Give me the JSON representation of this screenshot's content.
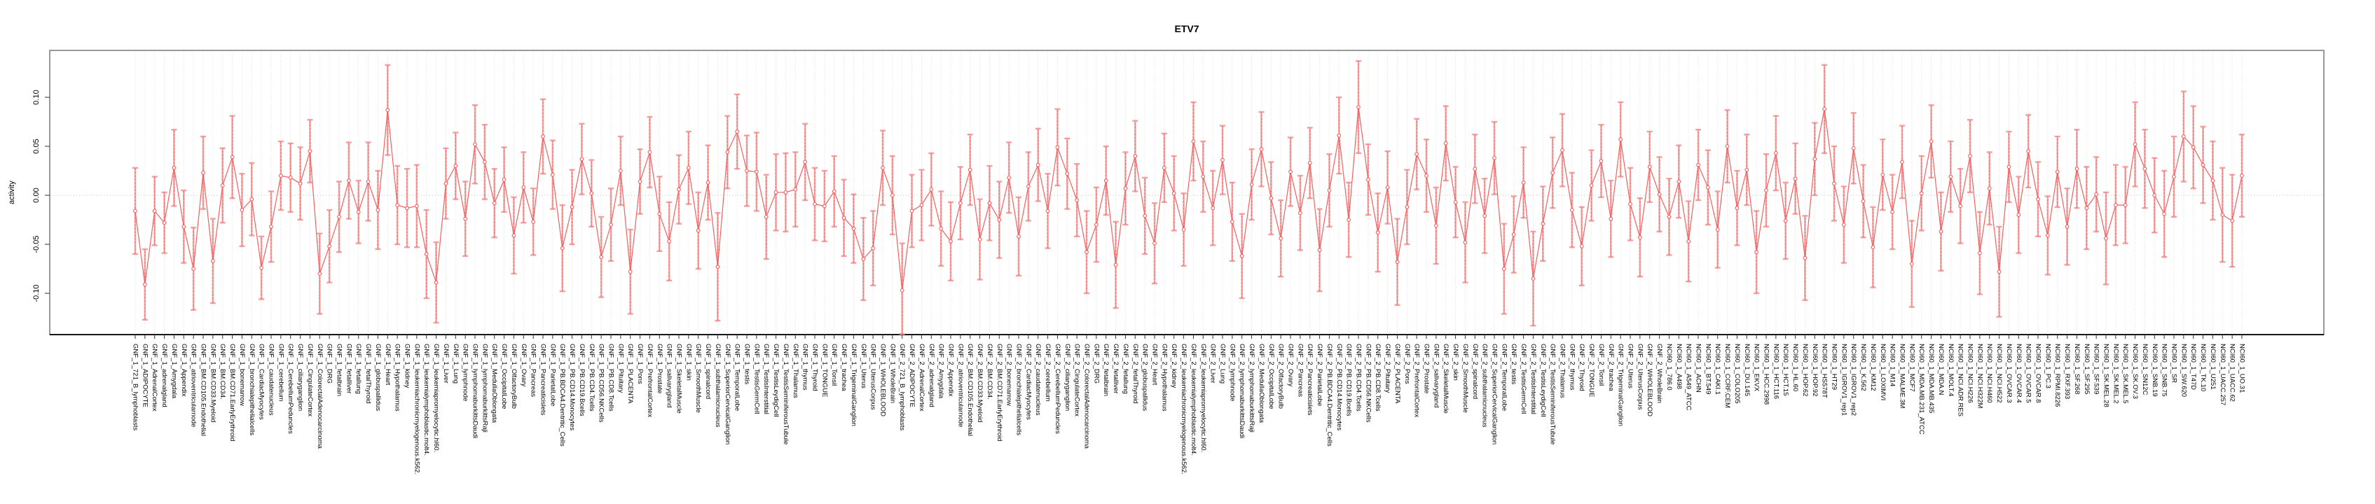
{
  "title": "ETV7",
  "chart_data": {
    "type": "line",
    "subtype": "points-with-error-bars",
    "title": "ETV7",
    "xlabel": "",
    "ylabel": "activity",
    "ylim": [
      -0.145,
      0.148
    ],
    "yticks": [
      0.1,
      0.05,
      0.0,
      -0.05,
      -0.1
    ],
    "ytick_labels": [
      "0.10",
      "0.05",
      "0.00",
      "-0.05",
      "-0.10"
    ],
    "grid": "vertical dotted gridline per category; dotted horizontal line at y=0",
    "legend_position": "none",
    "colors": {
      "point_and_line": "#f25f5f",
      "error_bar": "#f59b9b",
      "gridline": "#dedede",
      "zero_line": "#c4c4c4",
      "box": "#808080",
      "axis": "#000000"
    },
    "categories": [
      "GNF_1_721_B_lymphoblasts",
      "GNF_1_ADIPOCYTE",
      "GNF_1_AdrenalCortex",
      "GNF_1_adrenalgland",
      "GNF_1_Amygdala",
      "GNF_1_Appendix",
      "GNF_1_atrioventricularnode",
      "GNF_1_BM.CD105.Endothelial",
      "GNF_1_BM.CD33.Myeloid",
      "GNF_1_BM.CD34.",
      "GNF_1_BM.CD71.EarlyErythroid",
      "GNF_1_bonemarrow",
      "GNF_1_bronchialepithelialcells",
      "GNF_1_CardiacMyocytes",
      "GNF_1_caudatenucleus",
      "GNF_1_cerebellum",
      "GNF_1_CerebellumPeduncles",
      "GNF_1_ciliaryganglion",
      "GNF_1_CingulateCortex",
      "GNF_1_ColorectalAdenocarcinoma",
      "GNF_1_DRG",
      "GNF_1_fetalbrain",
      "GNF_1_fetalliver",
      "GNF_1_fetallung",
      "GNF_1_fetalThyroid",
      "GNF_1_globuspallidus",
      "GNF_1_Heart",
      "GNF_1_Hypothalamus",
      "GNF_1_kidney",
      "GNF_1_leukemiachronicmyelogenous.k562.",
      "GNF_1_leukemialymphoblastic.molt4.",
      "GNF_1_leukemiapromyelocytic.hl60.",
      "GNF_1_Liver",
      "GNF_1_Lung",
      "GNF_1_lymphnode",
      "GNF_1_lymphomaburkittsDaudi",
      "GNF_1_lymphomaburkittsRaji",
      "GNF_1_MedullaOblongata",
      "GNF_1_OccipitalLobe",
      "GNF_1_OlfactoryBulb",
      "GNF_1_Ovary",
      "GNF_1_Pancreas",
      "GNF_1_Pancreaticislets",
      "GNF_1_ParietalLobe",
      "GNF_1_PB.BDCA4.Dentritic_Cells",
      "GNF_1_PB.CD14.Monocytes",
      "GNF_1_PB.CD19.Bcells",
      "GNF_1_PB.CD4.Tcells",
      "GNF_1_PB.CD56.NKCells",
      "GNF_1_PB.CD8.Tcells",
      "GNF_1_Pituitary",
      "GNF_1_PLACENTA",
      "GNF_1_Pons",
      "GNF_1_PrefrontalCortex",
      "GNF_1_Prostate",
      "GNF_1_salivarygland",
      "GNF_1_SkeletalMuscle",
      "GNF_1_skin",
      "GNF_1_SmoothMuscle",
      "GNF_1_spinalcord",
      "GNF_1_subthalamicnucleus",
      "GNF_1_SuperiorCervicalGanglion",
      "GNF_1_TemporalLobe",
      "GNF_1_testis",
      "GNF_1_TestisGermCell",
      "GNF_1_TestisInterstitial",
      "GNF_1_TestisLeydigCell",
      "GNF_1_TestisSeminiferousTubule",
      "GNF_1_Thalamus",
      "GNF_1_thymus",
      "GNF_1_Thyroid",
      "GNF_1_TONGUE",
      "GNF_1_Tonsil",
      "GNF_1_trachea",
      "GNF_1_TrigeminalGanglion",
      "GNF_1_Uterus",
      "GNF_1_UterusCorpus",
      "GNF_1_WHOLEBLOOD",
      "GNF_1_WholeBrain",
      "GNF_2_721_B_lymphoblasts",
      "GNF_2_ADIPOCYTE",
      "GNF_2_AdrenalCortex",
      "GNF_2_adrenalgland",
      "GNF_2_Amygdala",
      "GNF_2_Appendix",
      "GNF_2_atrioventricularnode",
      "GNF_2_BM.CD105.Endothelial",
      "GNF_2_BM.CD33.Myeloid",
      "GNF_2_BM.CD34.",
      "GNF_2_BM.CD71.EarlyErythroid",
      "GNF_2_bonemarrow",
      "GNF_2_bronchialepithelialcells",
      "GNF_2_CardiacMyocytes",
      "GNF_2_caudatenucleus",
      "GNF_2_cerebellum",
      "GNF_2_CerebellumPeduncles",
      "GNF_2_ciliaryganglion",
      "GNF_2_CingulateCortex",
      "GNF_2_ColorectalAdenocarcinoma",
      "GNF_2_DRG",
      "GNF_2_fetalbrain",
      "GNF_2_fetalliver",
      "GNF_2_fetallung",
      "GNF_2_fetalThyroid",
      "GNF_2_globuspallidus",
      "GNF_2_Heart",
      "GNF_2_Hypothalamus",
      "GNF_2_kidney",
      "GNF_2_leukemiachronicmyelogenous.k562.",
      "GNF_2_leukemialymphoblastic.molt4.",
      "GNF_2_leukemiapromyelocytic.hl60.",
      "GNF_2_Liver",
      "GNF_2_Lung",
      "GNF_2_lymphnode",
      "GNF_2_lymphomaburkittsDaudi",
      "GNF_2_lymphomaburkittsRaji",
      "GNF_2_MedullaOblongata",
      "GNF_2_OccipitalLobe",
      "GNF_2_OlfactoryBulb",
      "GNF_2_Ovary",
      "GNF_2_Pancreas",
      "GNF_2_Pancreaticislets",
      "GNF_2_ParietalLobe",
      "GNF_2_PB.BDCA4.Dentritic_Cells",
      "GNF_2_PB.CD14.Monocytes",
      "GNF_2_PB.CD19.Bcells",
      "GNF_2_PB.CD4.Tcells",
      "GNF_2_PB.CD56.NKCells",
      "GNF_2_PB.CD8.Tcells",
      "GNF_2_Pituitary",
      "GNF_2_PLACENTA",
      "GNF_2_Pons",
      "GNF_2_PrefrontalCortex",
      "GNF_2_Prostate",
      "GNF_2_salivarygland",
      "GNF_2_SkeletalMuscle",
      "GNF_2_skin",
      "GNF_2_SmoothMuscle",
      "GNF_2_spinalcord",
      "GNF_2_subthalamicnucleus",
      "GNF_2_SuperiorCervicalGanglion",
      "GNF_2_TemporalLobe",
      "GNF_2_testis",
      "GNF_2_TestisGermCell",
      "GNF_2_TestisInterstitial",
      "GNF_2_TestisLeydigCell",
      "GNF_2_TestisSeminiferousTubule",
      "GNF_2_Thalamus",
      "GNF_2_thymus",
      "GNF_2_Thyroid",
      "GNF_2_TONGUE",
      "GNF_2_Tonsil",
      "GNF_2_trachea",
      "GNF_2_TrigeminalGanglion",
      "GNF_2_Uterus",
      "GNF_2_UterusCorpus",
      "GNF_2_WHOLEBLOOD",
      "GNF_2_WholeBrain",
      "NCI60_1_786.0",
      "NCI60_1_A498",
      "NCI60_1_A549_ATCC",
      "NCI60_1_ACHN",
      "NCI60_1_BT.549",
      "NCI60_1_CAKI.1",
      "NCI60_1_CCRF.CEM",
      "NCI60_1_COLO205",
      "NCI60_1_DU.145",
      "NCI60_1_EKVX",
      "NCI60_1_HCC.2998",
      "NCI60_1_HCT.116",
      "NCI60_1_HCT.15",
      "NCI60_1_HL.60",
      "NCI60_1_HOP.62",
      "NCI60_1_HOP.92",
      "NCI60_1_HS578T",
      "NCI60_1_HT29",
      "NCI60_1_IGROV1_rep1",
      "NCI60_1_IGROV1_rep2",
      "NCI60_1_K.562",
      "NCI60_1_KM12",
      "NCI60_1_LOXIMVI",
      "NCI60_1_M14",
      "NCI60_1_MALME.3M",
      "NCI60_1_MCF7",
      "NCI60_1_MDA.MB.231_ATCC",
      "NCI60_1_MDA.MB.435",
      "NCI60_1_MDA.N",
      "NCI60_1_MOLT.4",
      "NCI60_1_NCI.ADR.RES",
      "NCI60_1_NCI.H226",
      "NCI60_1_NCI.H322M",
      "NCI60_1_NCI.H460",
      "NCI60_1_NCI.H522",
      "NCI60_1_OVCAR.3",
      "NCI60_1_OVCAR.4",
      "NCI60_1_OVCAR.5",
      "NCI60_1_OVCAR.8",
      "NCI60_1_PC.3",
      "NCI60_1_RPMI.8226",
      "NCI60_1_RXF.393",
      "NCI60_1_SF.268",
      "NCI60_1_SF.295",
      "NCI60_1_SF.539",
      "NCI60_1_SK.MEL.28",
      "NCI60_1_SK.MEL.2",
      "NCI60_1_SK.MEL.5",
      "NCI60_1_SK.OV.3",
      "NCI60_1_SN12C",
      "NCI60_1_SNB.19",
      "NCI60_1_SNB.75",
      "NCI60_1_SR",
      "NCI60_1_SW.620",
      "NCI60_1_T47D",
      "NCI60_1_TK.10",
      "NCI60_1_U251",
      "NCI60_1_UACC.257",
      "NCI60_1_UACC.62",
      "NCI60_1_UO.31"
    ],
    "series": [
      {
        "name": "activity",
        "values": [
          -0.016,
          -0.091,
          -0.016,
          -0.028,
          0.028,
          -0.032,
          -0.075,
          0.023,
          -0.067,
          0.01,
          0.039,
          -0.015,
          -0.004,
          -0.074,
          -0.032,
          0.02,
          0.018,
          0.012,
          0.045,
          -0.08,
          -0.052,
          -0.022,
          0.015,
          -0.017,
          0.014,
          -0.015,
          0.087,
          -0.01,
          -0.013,
          -0.011,
          -0.06,
          -0.089,
          0.012,
          0.03,
          -0.024,
          0.052,
          0.034,
          -0.008,
          0.016,
          -0.041,
          0.008,
          -0.027,
          0.06,
          0.021,
          -0.054,
          -0.012,
          0.037,
          0.002,
          -0.063,
          -0.03,
          0.025,
          -0.078,
          0.014,
          0.044,
          -0.019,
          -0.047,
          0.006,
          0.028,
          -0.036,
          0.013,
          -0.073,
          0.044,
          0.065,
          0.025,
          0.024,
          -0.022,
          0.003,
          0.003,
          0.006,
          0.034,
          -0.009,
          -0.011,
          0.004,
          -0.023,
          -0.034,
          -0.065,
          -0.054,
          0.028,
          0.0,
          -0.097,
          -0.016,
          -0.01,
          0.006,
          -0.034,
          -0.047,
          -0.008,
          0.026,
          -0.045,
          -0.008,
          -0.025,
          0.018,
          -0.042,
          0.009,
          0.031,
          -0.016,
          0.049,
          0.022,
          -0.005,
          -0.058,
          -0.03,
          0.015,
          -0.071,
          0.007,
          0.04,
          -0.021,
          -0.049,
          0.028,
          0.002,
          -0.035,
          0.055,
          0.019,
          -0.013,
          0.036,
          -0.027,
          -0.062,
          0.011,
          0.047,
          -0.003,
          -0.044,
          0.024,
          -0.018,
          0.033,
          -0.056,
          0.005,
          0.061,
          -0.025,
          0.09,
          0.016,
          -0.038,
          0.008,
          -0.068,
          -0.012,
          0.042,
          0.02,
          -0.031,
          0.053,
          -0.007,
          -0.048,
          0.027,
          -0.021,
          0.038,
          -0.075,
          -0.04,
          0.013,
          -0.085,
          -0.029,
          0.023,
          0.046,
          -0.015,
          -0.052,
          0.01,
          0.035,
          -0.024,
          0.057,
          -0.009,
          -0.043,
          0.029,
          0.001,
          -0.022,
          0.014,
          -0.047,
          0.031,
          0.008,
          -0.035,
          0.05,
          -0.013,
          0.026,
          -0.058,
          0.005,
          0.043,
          -0.026,
          0.017,
          -0.064,
          0.037,
          0.088,
          0.012,
          -0.03,
          0.048,
          -0.006,
          -0.053,
          0.021,
          -0.017,
          0.034,
          -0.07,
          0.002,
          0.055,
          -0.037,
          0.019,
          -0.011,
          0.04,
          -0.059,
          0.007,
          -0.078,
          0.029,
          -0.02,
          0.045,
          -0.004,
          -0.041,
          0.024,
          -0.032,
          0.027,
          -0.013,
          0.001,
          -0.044,
          -0.01,
          -0.01,
          0.052,
          0.027,
          0.0,
          -0.019,
          0.019,
          0.06,
          0.049,
          0.031,
          0.015,
          -0.02,
          -0.026,
          0.02
        ],
        "errors": [
          0.044,
          0.036,
          0.035,
          0.031,
          0.039,
          0.037,
          0.042,
          0.037,
          0.043,
          0.038,
          0.042,
          0.037,
          0.037,
          0.032,
          0.036,
          0.035,
          0.035,
          0.037,
          0.032,
          0.041,
          0.037,
          0.036,
          0.039,
          0.032,
          0.04,
          0.04,
          0.046,
          0.04,
          0.04,
          0.042,
          0.045,
          0.041,
          0.036,
          0.034,
          0.038,
          0.04,
          0.038,
          0.035,
          0.033,
          0.039,
          0.036,
          0.034,
          0.038,
          0.035,
          0.044,
          0.038,
          0.036,
          0.034,
          0.041,
          0.037,
          0.035,
          0.043,
          0.033,
          0.036,
          0.038,
          0.04,
          0.035,
          0.037,
          0.039,
          0.038,
          0.055,
          0.037,
          0.038,
          0.036,
          0.04,
          0.043,
          0.039,
          0.04,
          0.038,
          0.039,
          0.037,
          0.036,
          0.036,
          0.039,
          0.035,
          0.042,
          0.038,
          0.038,
          0.04,
          0.048,
          0.037,
          0.036,
          0.037,
          0.038,
          0.04,
          0.037,
          0.036,
          0.041,
          0.038,
          0.039,
          0.036,
          0.04,
          0.035,
          0.037,
          0.038,
          0.039,
          0.036,
          0.037,
          0.042,
          0.038,
          0.035,
          0.044,
          0.037,
          0.036,
          0.039,
          0.041,
          0.035,
          0.038,
          0.037,
          0.04,
          0.036,
          0.038,
          0.035,
          0.04,
          0.043,
          0.036,
          0.038,
          0.037,
          0.039,
          0.035,
          0.038,
          0.036,
          0.042,
          0.037,
          0.039,
          0.038,
          0.047,
          0.036,
          0.04,
          0.037,
          0.044,
          0.038,
          0.036,
          0.037,
          0.039,
          0.038,
          0.036,
          0.041,
          0.035,
          0.038,
          0.037,
          0.046,
          0.039,
          0.036,
          0.048,
          0.038,
          0.036,
          0.037,
          0.038,
          0.04,
          0.036,
          0.037,
          0.039,
          0.038,
          0.037,
          0.04,
          0.036,
          0.038,
          0.039,
          0.037,
          0.041,
          0.036,
          0.038,
          0.039,
          0.037,
          0.038,
          0.036,
          0.042,
          0.037,
          0.038,
          0.039,
          0.036,
          0.043,
          0.037,
          0.045,
          0.038,
          0.039,
          0.036,
          0.037,
          0.041,
          0.036,
          0.038,
          0.037,
          0.044,
          0.038,
          0.037,
          0.04,
          0.036,
          0.038,
          0.037,
          0.042,
          0.037,
          0.046,
          0.036,
          0.039,
          0.037,
          0.038,
          0.04,
          0.036,
          0.039,
          0.04,
          0.042,
          0.038,
          0.047,
          0.041,
          0.039,
          0.043,
          0.04,
          0.038,
          0.044,
          0.041,
          0.046,
          0.042,
          0.039,
          0.04,
          0.048,
          0.047,
          0.042
        ]
      }
    ]
  }
}
